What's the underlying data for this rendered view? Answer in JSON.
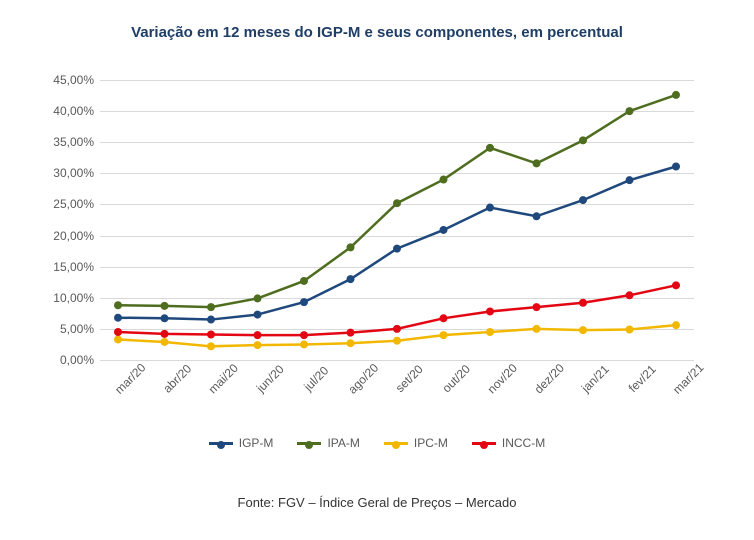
{
  "title": "Variação em 12 meses do IGP-M e seus componentes, em percentual",
  "title_fontsize": 15,
  "title_color": "#1f3e66",
  "source": "Fonte: FGV – Índice Geral de Preços – Mercado",
  "chart": {
    "type": "line",
    "background_color": "#ffffff",
    "grid_color": "#d9d9d9",
    "axis_label_color": "#595959",
    "axis_label_fontsize": 12,
    "ylim": [
      0,
      45
    ],
    "ytick_step": 5,
    "ytick_suffix": ",00%",
    "categories": [
      "mar/20",
      "abr/20",
      "mai/20",
      "jun/20",
      "jul/20",
      "ago/20",
      "set/20",
      "out/20",
      "nov/20",
      "dez/20",
      "jan/21",
      "fev/21",
      "mar/21"
    ],
    "marker_radius": 4,
    "line_width": 2.5,
    "series": [
      {
        "name": "IGP-M",
        "color": "#1f497d",
        "values": [
          6.8,
          6.7,
          6.5,
          7.3,
          9.3,
          13.0,
          17.9,
          20.9,
          24.5,
          23.1,
          25.7,
          28.9,
          31.1
        ]
      },
      {
        "name": "IPA-M",
        "color": "#4e6d1f",
        "values": [
          8.8,
          8.7,
          8.5,
          9.9,
          12.7,
          18.1,
          25.2,
          29.0,
          34.1,
          31.6,
          35.3,
          40.0,
          42.6
        ]
      },
      {
        "name": "IPC-M",
        "color": "#f2b800",
        "values": [
          3.3,
          2.9,
          2.2,
          2.4,
          2.5,
          2.7,
          3.1,
          4.0,
          4.5,
          5.0,
          4.8,
          4.9,
          5.6
        ]
      },
      {
        "name": "INCC-M",
        "color": "#e30613",
        "values": [
          4.5,
          4.2,
          4.1,
          4.0,
          4.0,
          4.4,
          5.0,
          6.7,
          7.8,
          8.5,
          9.2,
          10.4,
          12.0
        ]
      }
    ]
  }
}
